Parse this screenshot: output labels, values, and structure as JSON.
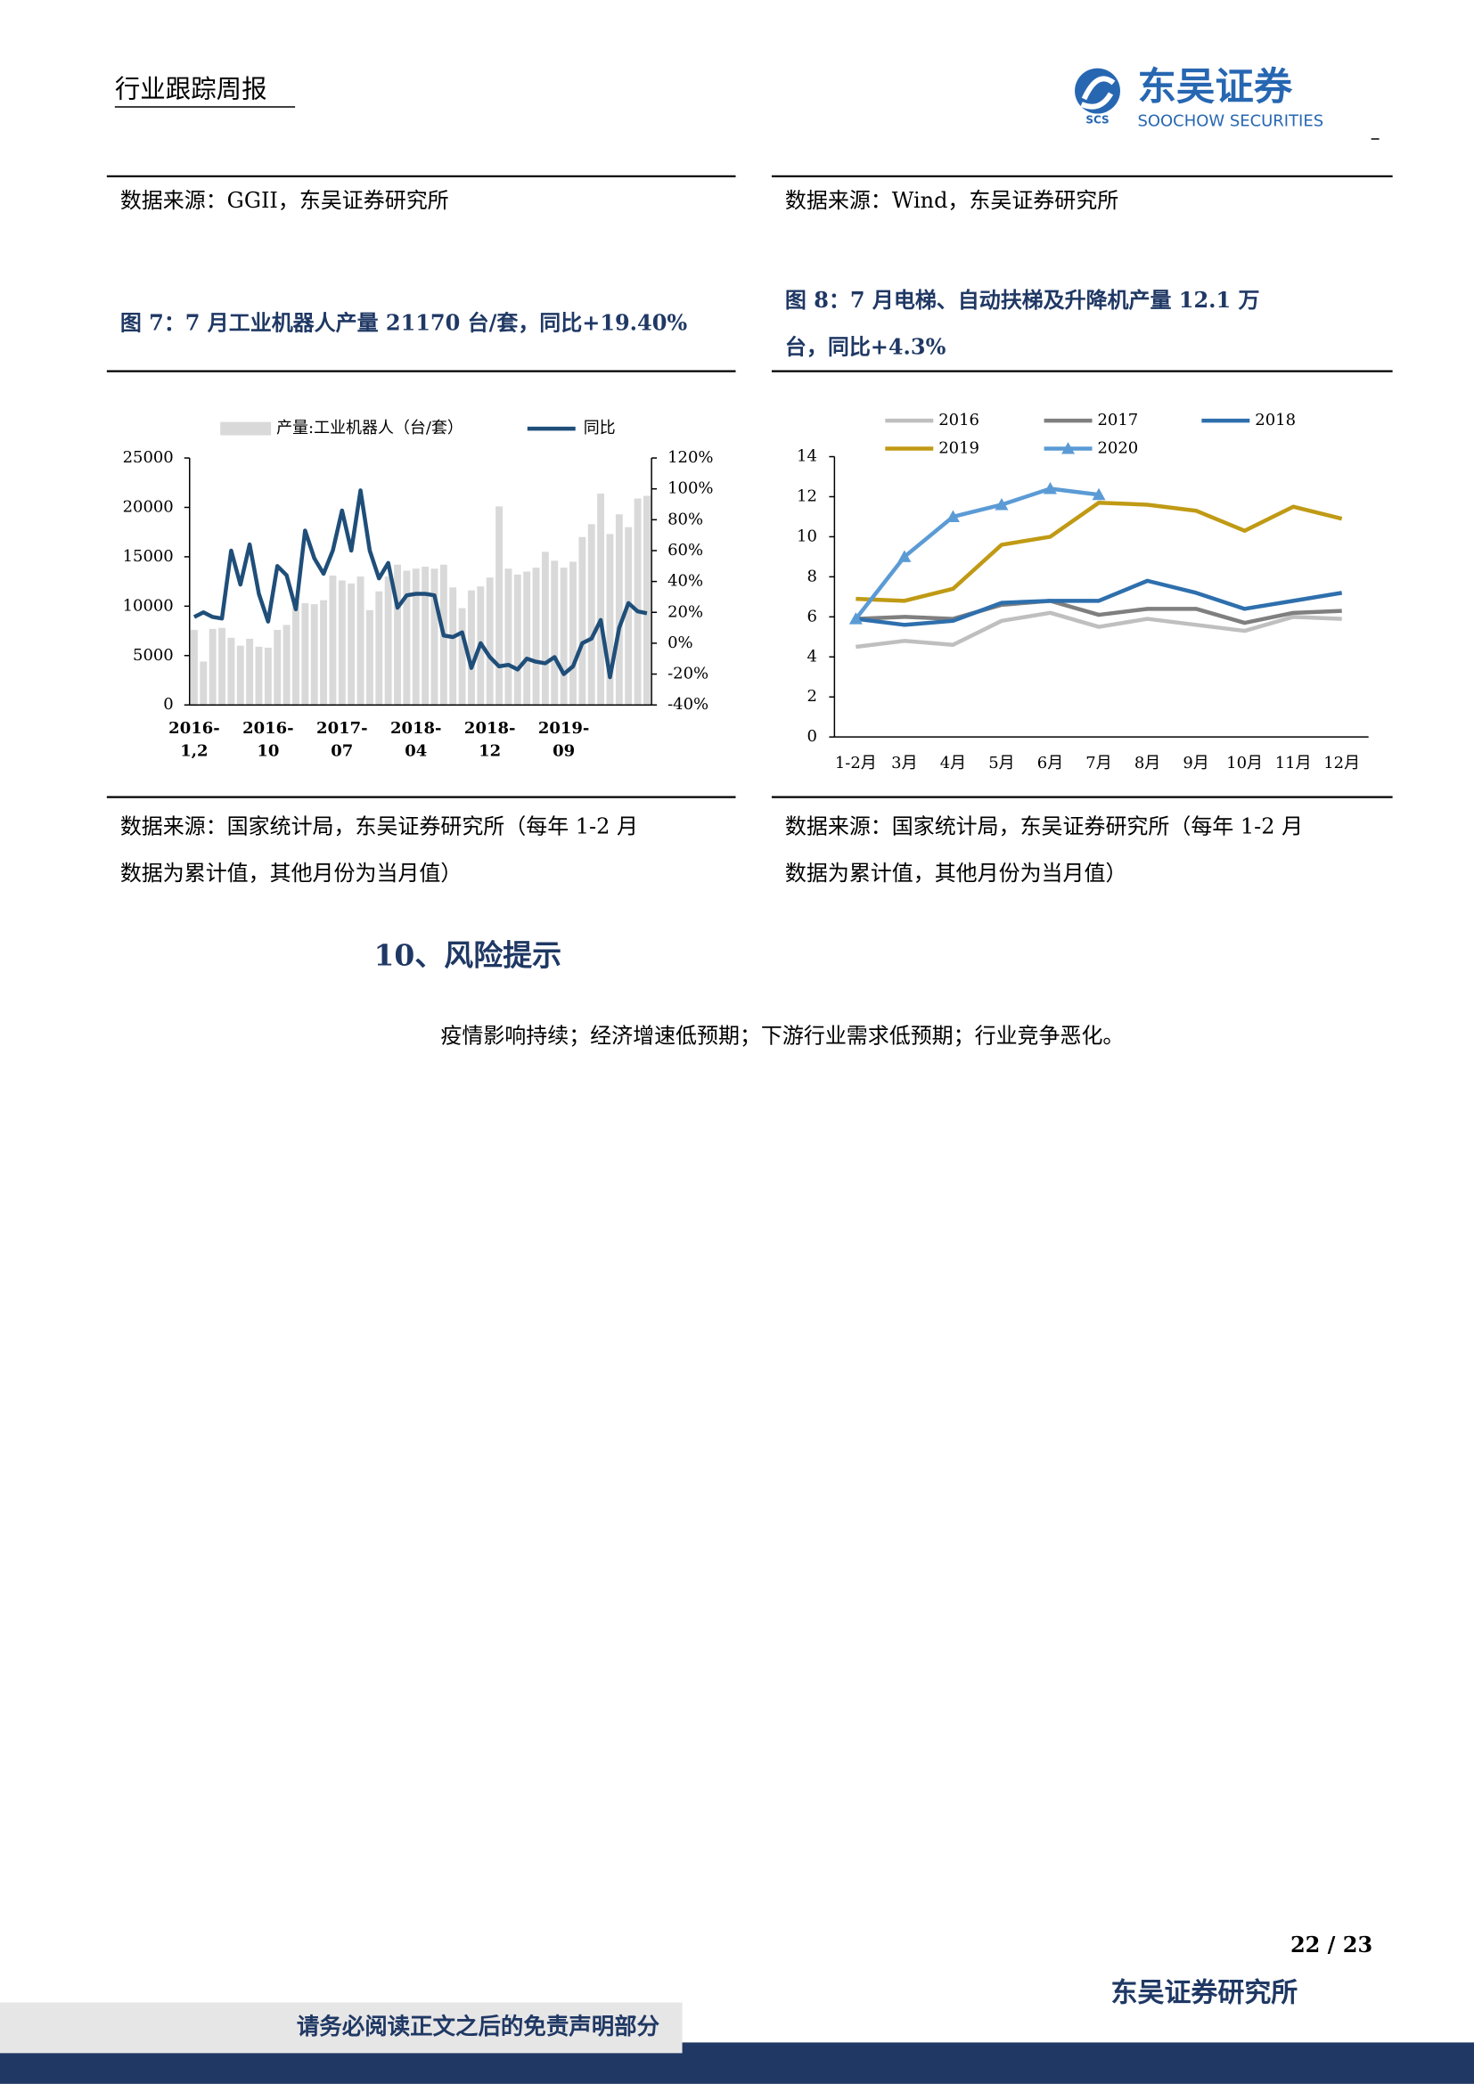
{
  "header": {
    "title": "行业跟踪周报",
    "logo_abbr": "SCS",
    "logo_cn": "东吴证券",
    "logo_en": "SOOCHOW SECURITIES"
  },
  "left": {
    "source_top": "数据来源：GGII，东吴证券研究所",
    "figure_title": [
      "图 7：7 月工业机器人产量 21170 台/套，同比+19.40%"
    ],
    "source": [
      "数据来源：国家统计局，东吴证券研究所（每年 1-2 月",
      "数据为累计值，其他月份为当月值）"
    ]
  },
  "right": {
    "source_top": "数据来源：Wind，东吴证券研究所",
    "figure_title": [
      "图 8：7 月电梯、自动扶梯及升降机产量 12.1 万",
      "台，同比+4.3%"
    ],
    "source": [
      "数据来源：国家统计局，东吴证券研究所（每年 1-2 月",
      "数据为累计值，其他月份为当月值）"
    ]
  },
  "section": {
    "heading": "10、风险提示",
    "body": "疫情影响持续；经济增速低预期；下游行业需求低预期；行业竞争恶化。"
  },
  "footer": {
    "page": "22 / 23",
    "institute": "东吴证券研究所",
    "disclaimer": "请务必阅读正文之后的免责声明部分"
  },
  "chart_data": [
    {
      "type": "bar_line",
      "categories": [
        "2016-1,2",
        null,
        null,
        null,
        null,
        null,
        null,
        null,
        "2016-10",
        null,
        null,
        null,
        null,
        null,
        null,
        null,
        "2017-07",
        null,
        null,
        null,
        null,
        null,
        null,
        null,
        "2018-04",
        null,
        null,
        null,
        null,
        null,
        null,
        null,
        "2018-12",
        null,
        null,
        null,
        null,
        null,
        null,
        null,
        "2019-09",
        null,
        null,
        null,
        null,
        null,
        null,
        null,
        null,
        null
      ],
      "series": [
        {
          "name": "产量:工业机器人（台/套）",
          "type": "bar",
          "color": "#d9d9d9",
          "values": [
            7600,
            4400,
            7700,
            7800,
            6800,
            6000,
            6700,
            5900,
            5800,
            7600,
            8100,
            10500,
            10300,
            10200,
            10600,
            13100,
            12600,
            12300,
            13000,
            9600,
            11500,
            13000,
            14200,
            13600,
            13800,
            14000,
            13800,
            14200,
            11900,
            9800,
            11600,
            12000,
            12900,
            20100,
            13800,
            13200,
            13500,
            13900,
            15500,
            14600,
            13900,
            14500,
            17000,
            18300,
            21400,
            17300,
            19300,
            18000,
            20900,
            21170
          ]
        },
        {
          "name": "同比",
          "type": "line",
          "axis": "y2",
          "color": "#1f4e79",
          "values": [
            17,
            20,
            17,
            16,
            60,
            38,
            64,
            32,
            14,
            50,
            44,
            22,
            73,
            55,
            45,
            60,
            86,
            60,
            99,
            60,
            42,
            52,
            23,
            31,
            32,
            32,
            31,
            5,
            4,
            7,
            -16,
            0,
            -9,
            -15,
            -14,
            -17,
            -10,
            -12,
            -13,
            -9,
            -20,
            -15,
            0,
            3,
            15,
            -22,
            10,
            26,
            20.6,
            19.4
          ]
        }
      ],
      "ylim": [
        0,
        25000
      ],
      "yticks": [
        0,
        5000,
        10000,
        15000,
        20000,
        25000
      ],
      "y2lim": [
        -40,
        120
      ],
      "y2ticks": [
        {
          "value": -40,
          "label": "-40%"
        },
        {
          "value": -20,
          "label": "-20%"
        },
        {
          "value": 0,
          "label": "0%"
        },
        {
          "value": 20,
          "label": "20%"
        },
        {
          "value": 40,
          "label": "40%"
        },
        {
          "value": 60,
          "label": "60%"
        },
        {
          "value": 80,
          "label": "80%"
        },
        {
          "value": 100,
          "label": "100%"
        },
        {
          "value": 120,
          "label": "120%"
        }
      ],
      "legend": "top"
    },
    {
      "type": "line",
      "categories": [
        "1-2月",
        "3月",
        "4月",
        "5月",
        "6月",
        "7月",
        "8月",
        "9月",
        "10月",
        "11月",
        "12月"
      ],
      "series": [
        {
          "name": "2016",
          "color": "#bfbfbf",
          "values": [
            4.5,
            4.8,
            4.6,
            5.8,
            6.2,
            5.5,
            5.9,
            5.6,
            5.3,
            6.0,
            5.9
          ]
        },
        {
          "name": "2017",
          "color": "#7f7f7f",
          "values": [
            5.9,
            6.0,
            5.9,
            6.6,
            6.8,
            6.1,
            6.4,
            6.4,
            5.7,
            6.2,
            6.3
          ]
        },
        {
          "name": "2018",
          "color": "#2e6fad",
          "values": [
            5.9,
            5.6,
            5.8,
            6.7,
            6.8,
            6.8,
            7.8,
            7.2,
            6.4,
            6.8,
            7.2
          ]
        },
        {
          "name": "2019",
          "color": "#c09a14",
          "values": [
            6.9,
            6.8,
            7.4,
            9.6,
            10.0,
            11.7,
            11.6,
            11.3,
            10.3,
            11.5,
            10.9
          ]
        },
        {
          "name": "2020",
          "color": "#5b9bd5",
          "marker": "triangle",
          "values": [
            5.9,
            9.0,
            11.0,
            11.6,
            12.4,
            12.1,
            null,
            null,
            null,
            null,
            null
          ]
        }
      ],
      "ylim": [
        0,
        14
      ],
      "yticks": [
        0,
        2,
        4,
        6,
        8,
        10,
        12,
        14
      ],
      "legend": "top"
    }
  ]
}
